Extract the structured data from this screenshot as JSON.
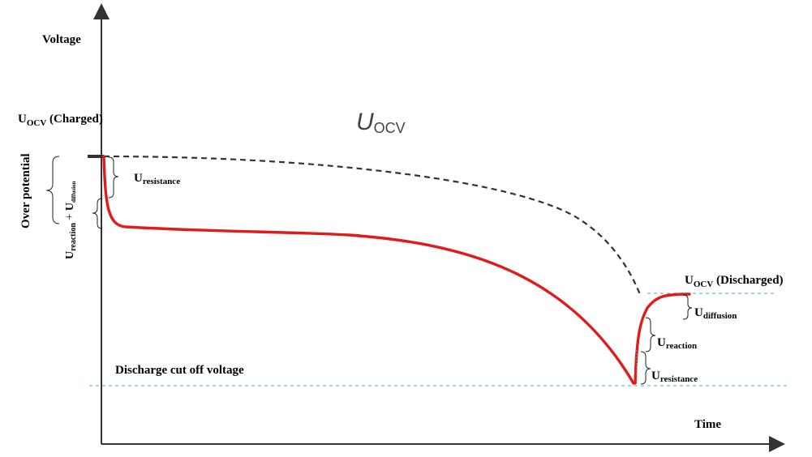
{
  "axes": {
    "y_label": "Voltage",
    "x_label": "Time"
  },
  "curve_label": {
    "main": "U",
    "sub": "OCV"
  },
  "labels": {
    "ocv_charged": {
      "main": "U",
      "sub": "OCV",
      "suffix": " (Charged)"
    },
    "ocv_discharged": {
      "main": "U",
      "sub": "OCV",
      "suffix": " (Discharged)"
    },
    "over_potential": "Over potential",
    "left_resistance": {
      "main": "U",
      "sub": "resistance"
    },
    "left_reaction_diffusion": {
      "main1": "U",
      "sub1": "reaction",
      "plus": " + ",
      "main2": "U",
      "sub2": "diffusion"
    },
    "right_diffusion": {
      "main": "U",
      "sub": "diffusion"
    },
    "right_reaction": {
      "main": "U",
      "sub": "reaction"
    },
    "right_resistance": {
      "main": "U",
      "sub": "resistance"
    },
    "cutoff": "Discharge cut off voltage"
  },
  "colors": {
    "discharge_curve": "#e01b1b",
    "ocv_curve": "#333333",
    "reference_lines": "#6fc3b3",
    "axes": "#333333"
  }
}
